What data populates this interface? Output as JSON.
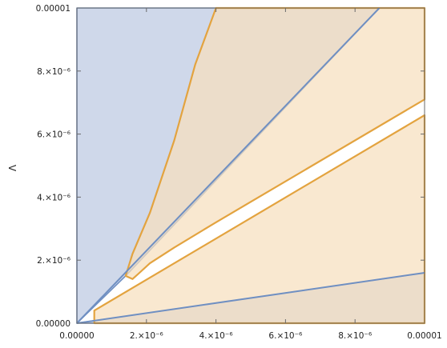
{
  "chart_data": {
    "type": "area",
    "title": "",
    "xlabel": "",
    "ylabel": "Λ",
    "xlim": [
      0,
      1e-05
    ],
    "ylim": [
      0,
      1e-05
    ],
    "grid": false,
    "legend": "none",
    "x_ticks": [
      {
        "value": 0,
        "label": "0.00000"
      },
      {
        "value": 2e-06,
        "label": "2.×10⁻⁶"
      },
      {
        "value": 4e-06,
        "label": "4.×10⁻⁶"
      },
      {
        "value": 6e-06,
        "label": "6.×10⁻⁶"
      },
      {
        "value": 8e-06,
        "label": "8.×10⁻⁶"
      },
      {
        "value": 1e-05,
        "label": "0.00001"
      }
    ],
    "y_ticks": [
      {
        "value": 0,
        "label": "0.00000"
      },
      {
        "value": 2e-06,
        "label": "2.×10⁻⁶"
      },
      {
        "value": 4e-06,
        "label": "4.×10⁻⁶"
      },
      {
        "value": 6e-06,
        "label": "6.×10⁻⁶"
      },
      {
        "value": 8e-06,
        "label": "8.×10⁻⁶"
      },
      {
        "value": 1e-05,
        "label": "0.00001"
      }
    ],
    "colors": {
      "blue_fill": "#cfd8ea",
      "blue_stroke": "#6f8fc2",
      "orange_fill": "#f6dfbe",
      "orange_stroke": "#e3a33f",
      "overlap_fill": "#d6bca4"
    },
    "regions": [
      {
        "kind": "blue",
        "points": [
          [
            0,
            0
          ],
          [
            0,
            1e-05
          ],
          [
            8.7e-06,
            1e-05
          ],
          [
            1.4e-06,
            1.5e-06
          ],
          [
            0,
            0
          ]
        ]
      },
      {
        "kind": "blue",
        "points": [
          [
            0,
            0
          ],
          [
            1e-05,
            1.6e-06
          ],
          [
            1e-05,
            0
          ],
          [
            0,
            0
          ]
        ]
      },
      {
        "kind": "orange",
        "points": [
          [
            1.4e-06,
            1.5e-06
          ],
          [
            1.6e-06,
            2.2e-06
          ],
          [
            2.1e-06,
            3.5e-06
          ],
          [
            2.8e-06,
            5.8e-06
          ],
          [
            3.4e-06,
            8.2e-06
          ],
          [
            4e-06,
            1e-05
          ],
          [
            1e-05,
            1e-05
          ],
          [
            1e-05,
            7.1e-06
          ],
          [
            4e-06,
            3.2e-06
          ],
          [
            2.8e-06,
            2.4e-06
          ],
          [
            2.1e-06,
            1.9e-06
          ],
          [
            1.8e-06,
            1.6e-06
          ],
          [
            1.6e-06,
            1.4e-06
          ],
          [
            1.4e-06,
            1.5e-06
          ]
        ]
      },
      {
        "kind": "orange",
        "points": [
          [
            5e-07,
            1e-07
          ],
          [
            5e-07,
            4e-07
          ],
          [
            1e-05,
            6.6e-06
          ],
          [
            1e-05,
            0
          ],
          [
            5e-07,
            0
          ],
          [
            5e-07,
            1e-07
          ]
        ]
      }
    ],
    "blue_lines": [
      {
        "from": [
          0,
          0
        ],
        "to": [
          8.7e-06,
          1e-05
        ]
      },
      {
        "from": [
          0,
          0
        ],
        "to": [
          1e-05,
          1.6e-06
        ]
      }
    ]
  }
}
